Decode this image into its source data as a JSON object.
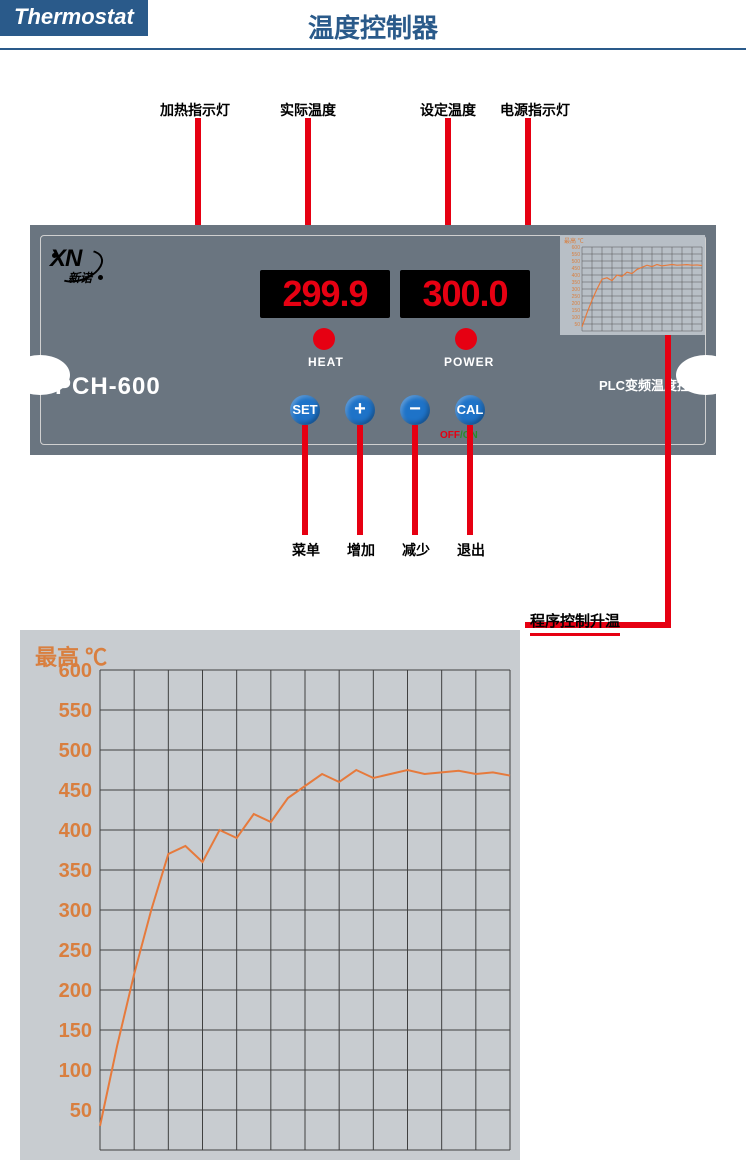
{
  "header": {
    "tab": "Thermostat",
    "title": "温度控制器",
    "tab_bg": "#2a5a8a",
    "title_color": "#2a5a8a"
  },
  "callouts_top": {
    "heat_led": "加热指示灯",
    "actual_temp": "实际温度",
    "set_temp": "设定温度",
    "power_led": "电源指示灯"
  },
  "callouts_bottom": {
    "menu": "菜单",
    "inc": "增加",
    "dec": "减少",
    "exit": "退出"
  },
  "device": {
    "bg": "#6a7580",
    "model": "PCH-600",
    "subtitle": "PLC变频温度控制器",
    "logo_main": "XN",
    "logo_sub": "新诺",
    "lcd_actual": "299.9",
    "lcd_set": "300.0",
    "lcd_color": "#e60012",
    "led_heat_label": "HEAT",
    "led_power_label": "POWER",
    "buttons": {
      "set": "SET",
      "plus": "+",
      "minus": "−",
      "cal": "CAL"
    },
    "off_label": "OFF",
    "on_label": "/ON",
    "btn_bg": "#1e73c8"
  },
  "program_label": "程序控制升温",
  "callout_color": "#e60012",
  "chart": {
    "type": "line",
    "title": "最高 ℃",
    "title_color": "#d97f3f",
    "bg": "#c8ccd0",
    "grid_color": "#404040",
    "line_color": "#e67a3c",
    "line_width": 2,
    "y_ticks": [
      50,
      100,
      150,
      200,
      250,
      300,
      350,
      400,
      450,
      500,
      550,
      600
    ],
    "y_tick_color": "#d97f3f",
    "y_fontsize": 20,
    "ylim": [
      0,
      600
    ],
    "x_cells": 12,
    "points_y": [
      30,
      130,
      220,
      300,
      370,
      380,
      360,
      400,
      390,
      420,
      410,
      440,
      455,
      470,
      460,
      475,
      465,
      470,
      475,
      470,
      472,
      474,
      470,
      472,
      468
    ]
  },
  "mini_chart": {
    "title": "最高 ℃",
    "y_ticks": [
      50,
      100,
      150,
      200,
      250,
      300,
      350,
      400,
      450,
      500,
      550,
      600
    ],
    "line_color": "#e67a3c",
    "grid_color": "#555555",
    "tick_color": "#d97f3f"
  }
}
